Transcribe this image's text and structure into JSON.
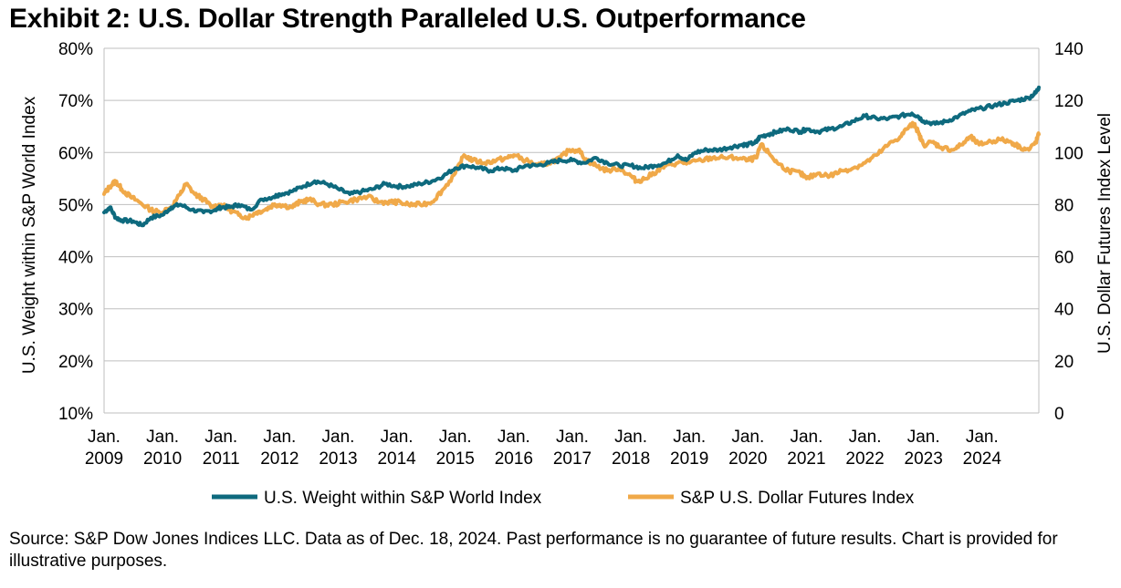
{
  "title": "Exhibit 2: U.S. Dollar Strength Paralleled U.S. Outperformance",
  "source": "Source: S&P Dow Jones Indices LLC. Data as of Dec. 18, 2024. Past performance is no guarantee of future results. Chart is provided for illustrative purposes.",
  "colors": {
    "weight": "#0E6A7E",
    "dollar": "#F0A949",
    "grid": "#BFBFBF"
  },
  "chart_data": {
    "type": "line",
    "title": "Exhibit 2: U.S. Dollar Strength Paralleled U.S. Outperformance",
    "xlabel": "",
    "ylabel_left": "U.S. Weight within S&P World Index",
    "ylabel_right": "U.S. Dollar Futures Index Level",
    "x_range": [
      2009.0,
      2024.97
    ],
    "y_left": {
      "min": 10,
      "max": 80,
      "step": 10,
      "suffix": "%"
    },
    "y_right": {
      "min": 0,
      "max": 140,
      "step": 20
    },
    "x_ticks": [
      {
        "x": 2009,
        "line1": "Jan.",
        "line2": "2009"
      },
      {
        "x": 2010,
        "line1": "Jan.",
        "line2": "2010"
      },
      {
        "x": 2011,
        "line1": "Jan.",
        "line2": "2011"
      },
      {
        "x": 2012,
        "line1": "Jan.",
        "line2": "2012"
      },
      {
        "x": 2013,
        "line1": "Jan.",
        "line2": "2013"
      },
      {
        "x": 2014,
        "line1": "Jan.",
        "line2": "2014"
      },
      {
        "x": 2015,
        "line1": "Jan.",
        "line2": "2015"
      },
      {
        "x": 2016,
        "line1": "Jan.",
        "line2": "2016"
      },
      {
        "x": 2017,
        "line1": "Jan.",
        "line2": "2017"
      },
      {
        "x": 2018,
        "line1": "Jan.",
        "line2": "2018"
      },
      {
        "x": 2019,
        "line1": "Jan.",
        "line2": "2019"
      },
      {
        "x": 2020,
        "line1": "Jan.",
        "line2": "2020"
      },
      {
        "x": 2021,
        "line1": "Jan.",
        "line2": "2021"
      },
      {
        "x": 2022,
        "line1": "Jan.",
        "line2": "2022"
      },
      {
        "x": 2023,
        "line1": "Jan.",
        "line2": "2023"
      },
      {
        "x": 2024,
        "line1": "Jan.",
        "line2": "2024"
      }
    ],
    "series": [
      {
        "name": "U.S. Weight within S&P World Index",
        "axis": "left",
        "color": "#0E6A7E",
        "points": [
          [
            2009.0,
            48.5
          ],
          [
            2009.1,
            49.5
          ],
          [
            2009.2,
            47.5
          ],
          [
            2009.3,
            47.0
          ],
          [
            2009.5,
            46.8
          ],
          [
            2009.65,
            46.0
          ],
          [
            2009.8,
            47.5
          ],
          [
            2010.0,
            48.0
          ],
          [
            2010.15,
            49.5
          ],
          [
            2010.3,
            50.0
          ],
          [
            2010.5,
            49.0
          ],
          [
            2010.7,
            48.5
          ],
          [
            2010.9,
            49.0
          ],
          [
            2011.0,
            49.5
          ],
          [
            2011.15,
            49.5
          ],
          [
            2011.3,
            50.0
          ],
          [
            2011.5,
            49.0
          ],
          [
            2011.7,
            51.0
          ],
          [
            2011.9,
            51.5
          ],
          [
            2012.0,
            52.0
          ],
          [
            2012.2,
            52.5
          ],
          [
            2012.4,
            53.5
          ],
          [
            2012.6,
            54.5
          ],
          [
            2012.8,
            54.0
          ],
          [
            2013.0,
            53.0
          ],
          [
            2013.2,
            52.0
          ],
          [
            2013.4,
            52.5
          ],
          [
            2013.6,
            53.0
          ],
          [
            2013.8,
            54.0
          ],
          [
            2014.0,
            53.5
          ],
          [
            2014.2,
            53.5
          ],
          [
            2014.4,
            54.0
          ],
          [
            2014.6,
            54.5
          ],
          [
            2014.8,
            55.5
          ],
          [
            2015.0,
            57.0
          ],
          [
            2015.2,
            57.5
          ],
          [
            2015.4,
            57.0
          ],
          [
            2015.6,
            56.5
          ],
          [
            2015.8,
            57.0
          ],
          [
            2016.0,
            56.5
          ],
          [
            2016.2,
            57.5
          ],
          [
            2016.4,
            57.5
          ],
          [
            2016.6,
            58.0
          ],
          [
            2016.8,
            58.5
          ],
          [
            2017.0,
            58.5
          ],
          [
            2017.2,
            58.0
          ],
          [
            2017.4,
            59.0
          ],
          [
            2017.6,
            58.0
          ],
          [
            2017.8,
            57.5
          ],
          [
            2018.0,
            57.5
          ],
          [
            2018.2,
            57.0
          ],
          [
            2018.4,
            57.5
          ],
          [
            2018.6,
            58.0
          ],
          [
            2018.8,
            59.5
          ],
          [
            2018.95,
            58.5
          ],
          [
            2019.1,
            60.0
          ],
          [
            2019.3,
            60.5
          ],
          [
            2019.5,
            60.5
          ],
          [
            2019.7,
            61.0
          ],
          [
            2019.9,
            61.5
          ],
          [
            2020.0,
            61.5
          ],
          [
            2020.15,
            62.0
          ],
          [
            2020.2,
            63.0
          ],
          [
            2020.35,
            63.5
          ],
          [
            2020.5,
            64.0
          ],
          [
            2020.7,
            64.5
          ],
          [
            2020.9,
            64.0
          ],
          [
            2021.0,
            64.5
          ],
          [
            2021.2,
            64.0
          ],
          [
            2021.4,
            64.5
          ],
          [
            2021.6,
            65.0
          ],
          [
            2021.8,
            66.0
          ],
          [
            2022.0,
            67.0
          ],
          [
            2022.2,
            66.5
          ],
          [
            2022.4,
            66.5
          ],
          [
            2022.6,
            67.0
          ],
          [
            2022.8,
            67.5
          ],
          [
            2022.9,
            67.0
          ],
          [
            2023.0,
            66.0
          ],
          [
            2023.2,
            65.5
          ],
          [
            2023.4,
            66.0
          ],
          [
            2023.6,
            67.0
          ],
          [
            2023.8,
            68.0
          ],
          [
            2024.0,
            68.5
          ],
          [
            2024.2,
            69.0
          ],
          [
            2024.4,
            69.5
          ],
          [
            2024.6,
            70.0
          ],
          [
            2024.8,
            70.5
          ],
          [
            2024.92,
            71.5
          ],
          [
            2024.97,
            72.5
          ]
        ]
      },
      {
        "name": "S&P U.S. Dollar Futures Index",
        "axis": "right",
        "color": "#F0A949",
        "points": [
          [
            2009.0,
            84
          ],
          [
            2009.1,
            87
          ],
          [
            2009.2,
            89
          ],
          [
            2009.3,
            86
          ],
          [
            2009.45,
            83
          ],
          [
            2009.6,
            81
          ],
          [
            2009.8,
            78
          ],
          [
            2009.95,
            77
          ],
          [
            2010.15,
            79
          ],
          [
            2010.3,
            84
          ],
          [
            2010.4,
            88
          ],
          [
            2010.55,
            84
          ],
          [
            2010.7,
            82
          ],
          [
            2010.85,
            79
          ],
          [
            2011.0,
            80
          ],
          [
            2011.15,
            78
          ],
          [
            2011.3,
            76
          ],
          [
            2011.45,
            75
          ],
          [
            2011.6,
            77
          ],
          [
            2011.75,
            78
          ],
          [
            2011.9,
            80
          ],
          [
            2012.0,
            80
          ],
          [
            2012.2,
            79
          ],
          [
            2012.35,
            81
          ],
          [
            2012.5,
            82
          ],
          [
            2012.7,
            80
          ],
          [
            2012.9,
            80
          ],
          [
            2013.1,
            81
          ],
          [
            2013.3,
            82
          ],
          [
            2013.5,
            83
          ],
          [
            2013.7,
            81
          ],
          [
            2013.9,
            81
          ],
          [
            2014.0,
            81
          ],
          [
            2014.2,
            80
          ],
          [
            2014.4,
            80
          ],
          [
            2014.6,
            81
          ],
          [
            2014.8,
            86
          ],
          [
            2015.0,
            92
          ],
          [
            2015.15,
            99
          ],
          [
            2015.3,
            97
          ],
          [
            2015.5,
            96
          ],
          [
            2015.7,
            97
          ],
          [
            2015.9,
            98
          ],
          [
            2016.0,
            99
          ],
          [
            2016.2,
            97
          ],
          [
            2016.4,
            95
          ],
          [
            2016.6,
            96
          ],
          [
            2016.8,
            98
          ],
          [
            2016.95,
            101
          ],
          [
            2017.1,
            101
          ],
          [
            2017.25,
            97
          ],
          [
            2017.4,
            95
          ],
          [
            2017.6,
            93
          ],
          [
            2017.8,
            94
          ],
          [
            2018.0,
            91
          ],
          [
            2018.1,
            89
          ],
          [
            2018.25,
            90
          ],
          [
            2018.45,
            93
          ],
          [
            2018.6,
            95
          ],
          [
            2018.8,
            96
          ],
          [
            2019.0,
            96
          ],
          [
            2019.2,
            97
          ],
          [
            2019.4,
            98
          ],
          [
            2019.6,
            98
          ],
          [
            2019.8,
            98
          ],
          [
            2020.0,
            97
          ],
          [
            2020.15,
            98
          ],
          [
            2020.22,
            103
          ],
          [
            2020.35,
            100
          ],
          [
            2020.5,
            96
          ],
          [
            2020.7,
            93
          ],
          [
            2020.9,
            92
          ],
          [
            2021.0,
            90
          ],
          [
            2021.2,
            92
          ],
          [
            2021.4,
            91
          ],
          [
            2021.6,
            93
          ],
          [
            2021.8,
            94
          ],
          [
            2022.0,
            96
          ],
          [
            2022.2,
            99
          ],
          [
            2022.4,
            103
          ],
          [
            2022.6,
            106
          ],
          [
            2022.75,
            110
          ],
          [
            2022.85,
            111
          ],
          [
            2022.92,
            107
          ],
          [
            2023.0,
            103
          ],
          [
            2023.15,
            104
          ],
          [
            2023.3,
            102
          ],
          [
            2023.5,
            101
          ],
          [
            2023.65,
            103
          ],
          [
            2023.8,
            106
          ],
          [
            2023.95,
            103
          ],
          [
            2024.1,
            104
          ],
          [
            2024.3,
            105
          ],
          [
            2024.5,
            104
          ],
          [
            2024.65,
            102
          ],
          [
            2024.8,
            101
          ],
          [
            2024.92,
            104
          ],
          [
            2024.97,
            107
          ]
        ]
      }
    ],
    "legend": {
      "position": "bottom",
      "items": [
        "U.S. Weight within S&P World Index",
        "S&P U.S. Dollar Futures Index"
      ]
    },
    "grid": true
  }
}
